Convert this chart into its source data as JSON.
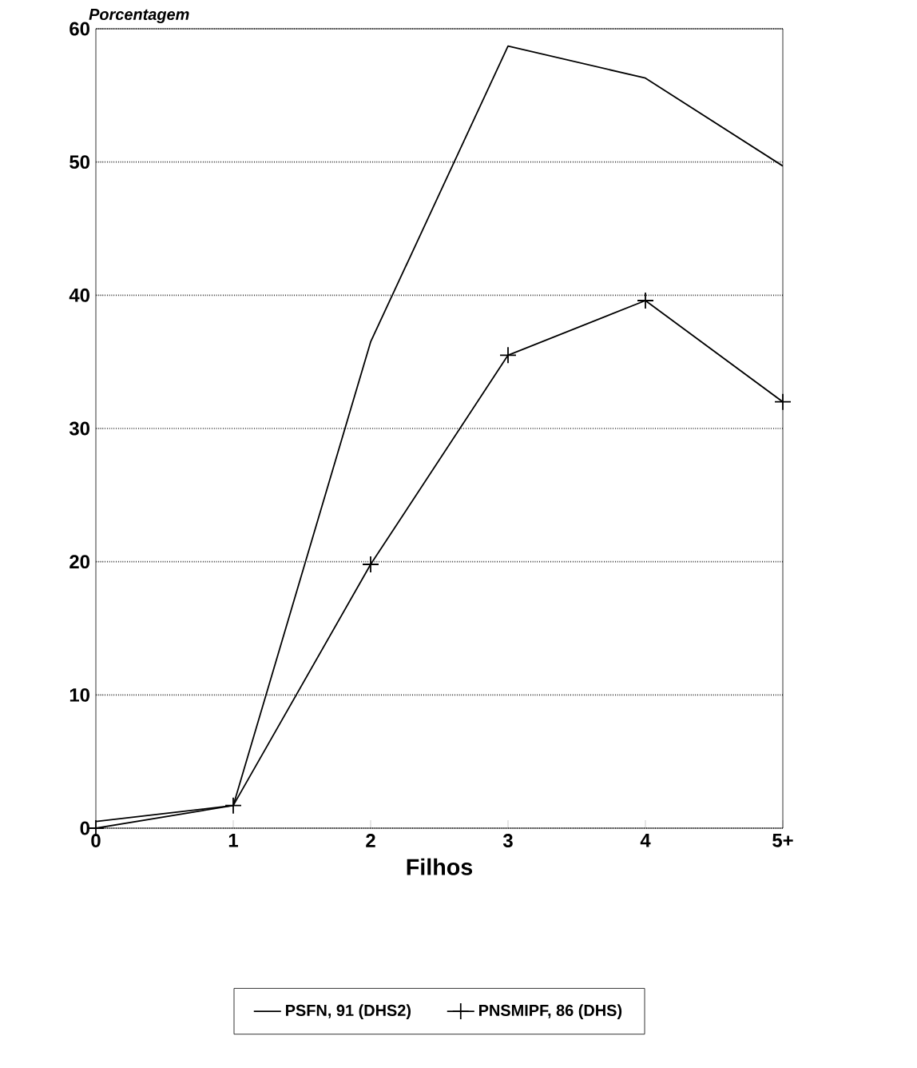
{
  "chart_data": {
    "type": "line",
    "ylabel": "Porcentagem",
    "xlabel": "Filhos",
    "categories": [
      "0",
      "1",
      "2",
      "3",
      "4",
      "5+"
    ],
    "series": [
      {
        "name": "PSFN, 91 (DHS2)",
        "color": "#000000",
        "values": [
          0.5,
          1.7,
          36.5,
          58.7,
          56.3,
          49.7
        ],
        "marker": "none"
      },
      {
        "name": "PNSMIPF, 86 (DHS)",
        "color": "#000000",
        "values": [
          0,
          1.7,
          19.8,
          35.5,
          39.6,
          32
        ],
        "marker": "cross"
      }
    ],
    "ylim": [
      0,
      60
    ],
    "yticks": [
      0,
      10,
      20,
      30,
      40,
      50,
      60
    ],
    "grid": "y",
    "legend": "bottom",
    "line_style": "solid"
  }
}
